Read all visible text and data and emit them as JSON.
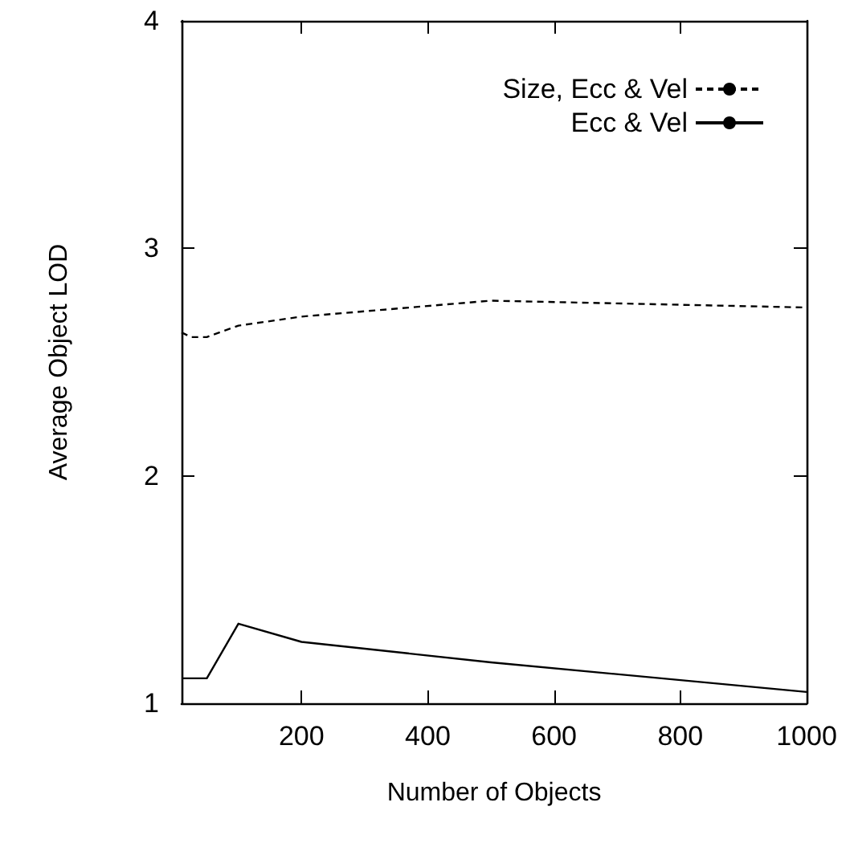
{
  "chart_data": {
    "type": "line",
    "xlabel": "Number of Objects",
    "ylabel": "Average Object LOD",
    "x": [
      10,
      25,
      50,
      100,
      200,
      500,
      1000
    ],
    "series": [
      {
        "name": "Size, Ecc & Vel",
        "color": "#000000",
        "line_style": "dashed",
        "values": [
          2.63,
          2.61,
          2.61,
          2.66,
          2.7,
          2.77,
          2.74
        ]
      },
      {
        "name": "Ecc & Vel",
        "color": "#000000",
        "line_style": "solid",
        "values": [
          1.11,
          1.11,
          1.11,
          1.35,
          1.27,
          1.18,
          1.05
        ]
      }
    ],
    "xlim": [
      10,
      1000
    ],
    "xticks": [
      200,
      400,
      600,
      800,
      1000
    ],
    "ylim": [
      1,
      4
    ],
    "yticks": [
      1,
      2,
      3,
      4
    ],
    "grid": false,
    "legend": "top right",
    "marker": "none"
  }
}
